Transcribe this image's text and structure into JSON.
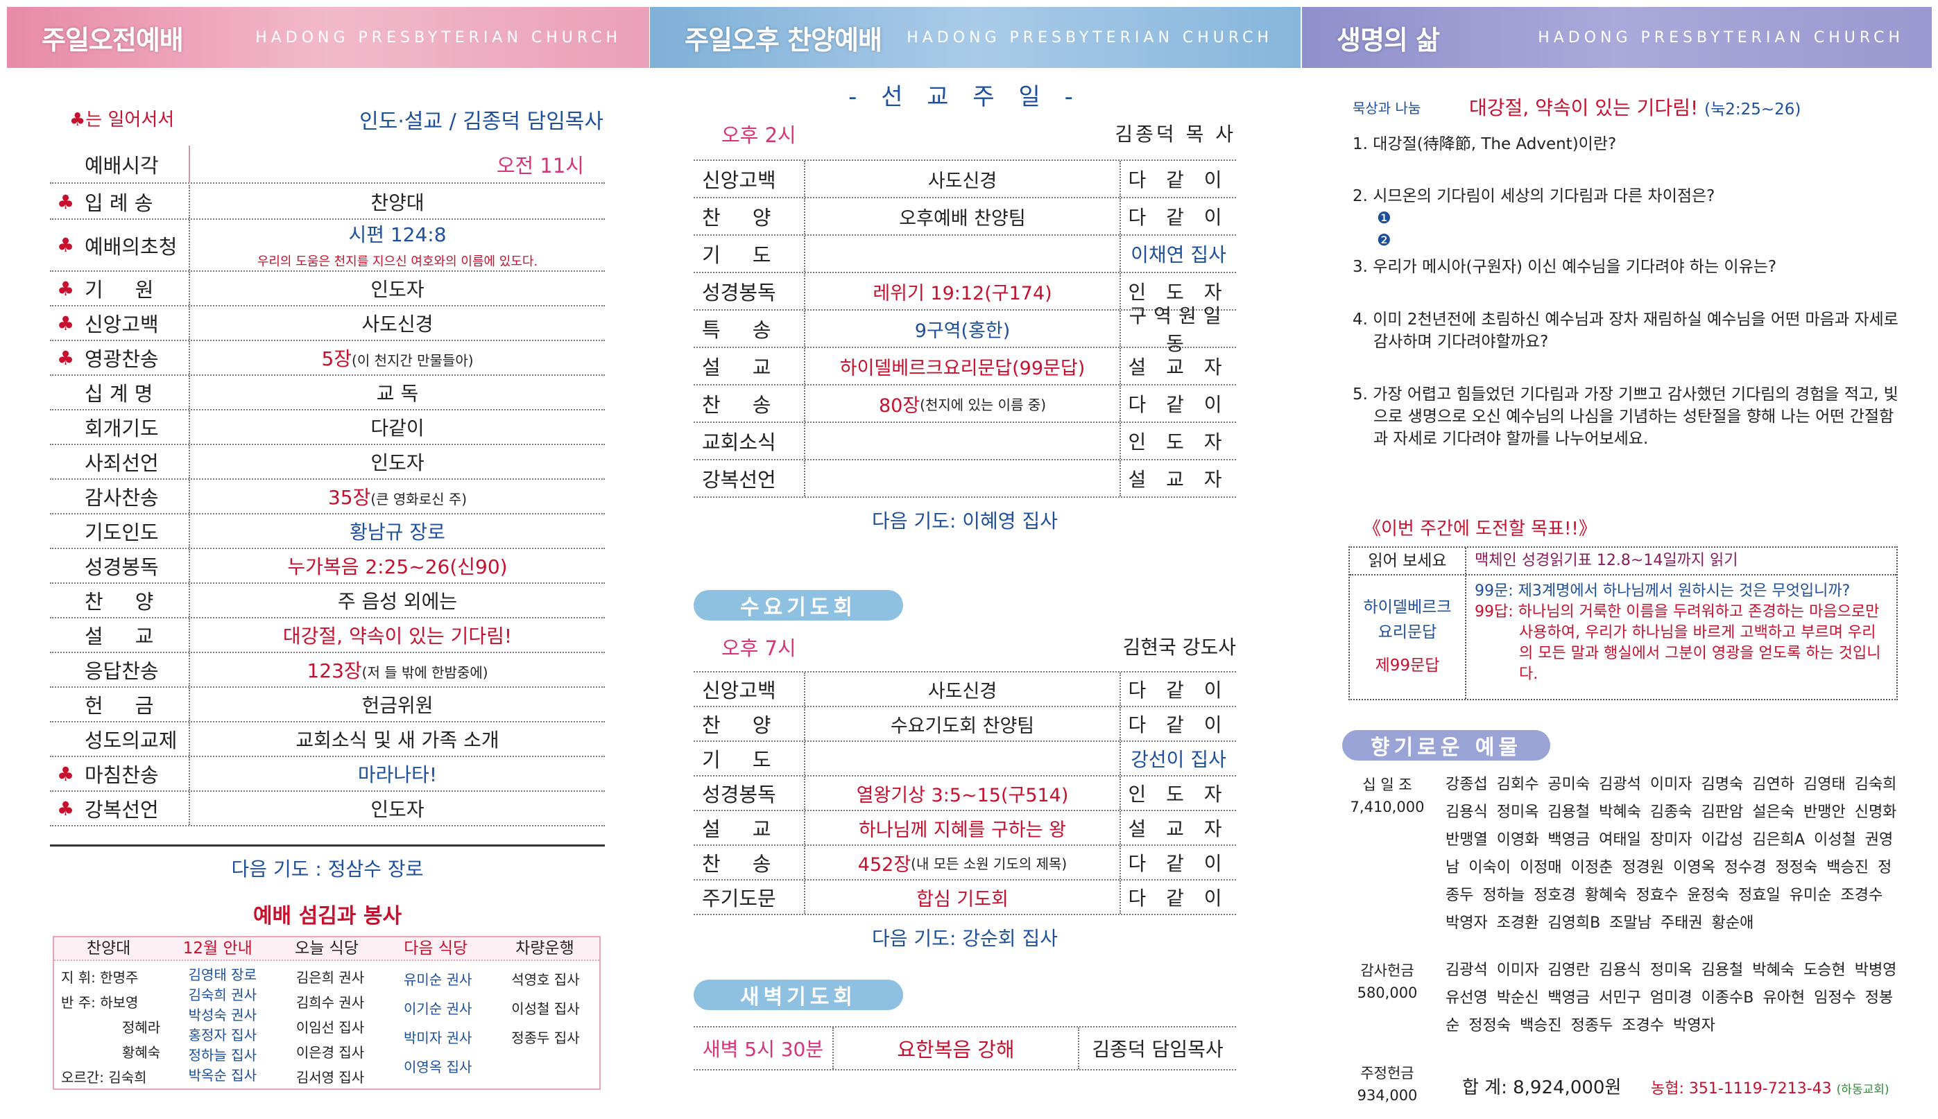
{
  "headers": {
    "subtitle": "HADONG PRESBYTERIAN CHURCH",
    "left": "주일오전예배",
    "middle": "주일오후 찬양예배",
    "right": "생명의 삶"
  },
  "morning": {
    "stand_note": "♣는 일어서서",
    "leader": "인도·설교 / 김종덕 담임목사",
    "time_label": "예배시각",
    "time_value": "오전 11시",
    "rows": [
      {
        "mark": "♣",
        "label": "입 례 송",
        "value": "찬양대"
      },
      {
        "mark": "♣",
        "label": "예배의초청",
        "value": "시편 124:8",
        "sub": "우리의 도움은 천지를 지으신 여호와의 이름에 있도다."
      },
      {
        "mark": "♣",
        "label": "기     원",
        "value": "인도자"
      },
      {
        "mark": "♣",
        "label": "신앙고백",
        "value": "사도신경"
      },
      {
        "mark": "♣",
        "label": "영광찬송",
        "value": "5장",
        "note": "(이 천지간 만물들아)"
      },
      {
        "mark": "",
        "label": "십 계 명",
        "value": "교 독"
      },
      {
        "mark": "",
        "label": "회개기도",
        "value": "다같이"
      },
      {
        "mark": "",
        "label": "사죄선언",
        "value": "인도자"
      },
      {
        "mark": "",
        "label": "감사찬송",
        "value": "35장",
        "note": "(큰 영화로신 주)"
      },
      {
        "mark": "",
        "label": "기도인도",
        "value": "황남규 장로"
      },
      {
        "mark": "",
        "label": "성경봉독",
        "value": "누가복음 2:25~26(신90)"
      },
      {
        "mark": "",
        "label": "찬     양",
        "value": "주 음성 외에는"
      },
      {
        "mark": "",
        "label": "설     교",
        "value": "대강절, 약속이 있는 기다림!"
      },
      {
        "mark": "",
        "label": "응답찬송",
        "value": "123장",
        "note": "(저 들 밖에 한밤중에)"
      },
      {
        "mark": "",
        "label": "헌     금",
        "value": "헌금위원"
      },
      {
        "mark": "",
        "label": "성도의교제",
        "value": "교회소식 및 새 가족 소개"
      },
      {
        "mark": "♣",
        "label": "마침찬송",
        "value": "마라나타!"
      },
      {
        "mark": "♣",
        "label": "강복선언",
        "value": "인도자"
      }
    ],
    "next_prayer": "다음 기도 : 정삼수 장로",
    "service_title": "예배 섬김과 봉사",
    "service": {
      "headers": [
        "찬양대",
        "12월 안내",
        "오늘 식당",
        "다음 식당",
        "차량운행"
      ],
      "choir": [
        "지   휘: 한명주",
        "반   주: 하보영",
        "정혜라",
        "황혜숙",
        "오르간: 김숙희"
      ],
      "guide": [
        "김영태 장로",
        "김숙희 권사",
        "박성숙 권사",
        "홍정자 집사",
        "정하늘 집사",
        "박옥순 집사"
      ],
      "today_kitchen": [
        "김은희 권사",
        "김희수 권사",
        "이임선 집사",
        "이은경 집사",
        "김서영 집사"
      ],
      "next_kitchen": [
        "유미순 권사",
        "이기순 권사",
        "박미자 권사",
        "이영옥 집사"
      ],
      "drivers": [
        "석영호 집사",
        "이성철 집사",
        "정종두 집사"
      ]
    }
  },
  "afternoon": {
    "theme": "- 선 교 주 일 -",
    "time": "오후 2시",
    "preacher": "김종덕 목 사",
    "rows": [
      {
        "label": "신앙고백",
        "value": "사도신경",
        "who": "다 같 이"
      },
      {
        "label": "찬     양",
        "value": "오후예배 찬양팀",
        "who": "다 같 이"
      },
      {
        "label": "기     도",
        "value": "",
        "who": "이채연 집사"
      },
      {
        "label": "성경봉독",
        "value": "레위기 19:12(구174)",
        "who": "인 도 자"
      },
      {
        "label": "특     송",
        "value": "9구역(홍한)",
        "who": "구역원일동"
      },
      {
        "label": "설     교",
        "value": "하이델베르크요리문답(99문답)",
        "who": "설 교 자"
      },
      {
        "label": "찬     송",
        "value": "80장",
        "note": "(천지에 있는 이름 중)",
        "who": "다 같 이"
      },
      {
        "label": "교회소식",
        "value": "",
        "who": "인 도 자"
      },
      {
        "label": "강복선언",
        "value": "",
        "who": "설 교 자"
      }
    ],
    "next_prayer": "다음 기도: 이혜영 집사"
  },
  "wednesday": {
    "title": "수요기도회",
    "time": "오후 7시",
    "preacher": "김현국 강도사",
    "rows": [
      {
        "label": "신앙고백",
        "value": "사도신경",
        "who": "다 같 이"
      },
      {
        "label": "찬     양",
        "value": "수요기도회 찬양팀",
        "who": "다 같 이"
      },
      {
        "label": "기     도",
        "value": "",
        "who": "강선이 집사"
      },
      {
        "label": "성경봉독",
        "value": "열왕기상 3:5~15(구514)",
        "who": "인 도 자"
      },
      {
        "label": "설     교",
        "value": "하나님께 지혜를 구하는 왕",
        "who": "설 교 자"
      },
      {
        "label": "찬     송",
        "value": "452장",
        "note": "(내 모든 소원 기도의 제목)",
        "who": "다 같 이"
      },
      {
        "label": "주기도문",
        "value": "합심 기도회",
        "who": "다 같 이"
      }
    ],
    "next_prayer": "다음 기도: 강순회 집사"
  },
  "dawn": {
    "title": "새벽기도회",
    "time": "새벽 5시 30분",
    "value": "요한복음 강해",
    "who": "김종덕 담임목사"
  },
  "life": {
    "tag": "묵상과 나눔",
    "title": "대강절, 약속이 있는 기다림!",
    "ref": "(눅2:25~26)",
    "questions": [
      "1. 대강절(待降節, The Advent)이란?",
      "2. 시므온의 기다림이 세상의 기다림과 다른 차이점은?",
      "❶",
      "❷",
      "3. 우리가 메시아(구원자) 이신 예수님을 기다려야 하는 이유는?",
      "4. 이미 2천년전에 초림하신 예수님과 장차 재림하실 예수님을 어떤 마음과 자세로 감사하며 기다려야할까요?",
      "5. 가장 어렵고 힘들었던 기다림과 가장 기쁘고 감사했던 기다림의 경험을 적고, 빛으로 생명으로 오신 예수님의 나심을 기념하는 성탄절을 향해 나는 어떤 간절함과 자세로 기다려야 할까를 나누어보세요."
    ],
    "challenge_title": "《이번 주간에 도전할 목표!!》",
    "read_label": "읽어 보세요",
    "read_value": "맥체인 성경읽기표 12.8~14일까지 읽기",
    "catechism_label1": "하이델베르크",
    "catechism_label2": "요리문답",
    "catechism_label3": "제99문답",
    "q99": "99문: 제3계명에서 하나님께서 원하시는 것은 무엇입니까?",
    "a99": "99답: 하나님의 거룩한 이름을 두려워하고 존경하는 마음으로만 사용하여, 우리가 하나님을 바르게 고백하고 부르며 우리의 모든 말과 행실에서 그분이 영광을 얻도록 하는 것입니다."
  },
  "offering": {
    "title": "향기로운 예물",
    "tithe_label": "십 일 조",
    "tithe_amount": "7,410,000",
    "tithe_names": "강종섭 김회수 공미숙 김광석 이미자 김명숙 김연하 김영태 김숙희 김용식 정미옥 김용철 박혜숙 김종숙 김판암 설은숙 반맹안 신명화 반맹열 이영화 백영금 여태일 장미자 이갑성 김은희A 이성철 권영남 이숙이 이정매 이정춘 정경원 이영옥 정수경 정정숙 백승진 정종두 정하늘 정호경 황혜숙 정효수 윤정숙 정효일 유미순 조경수 박영자 조경환 김영희B 조말남 주태권 황순애",
    "thanks_label": "감사헌금",
    "thanks_amount": "580,000",
    "thanks_names": "김광석 이미자 김영란 김용식 정미옥 김용철 박혜숙 도승현 박병영 유선영 박순신 백영금 서민구 엄미경 이종수B 유아현 임정수 정봉순 정정숙 백승진 정종두 조경수 박영자",
    "weekly_label": "주정헌금",
    "weekly_amount": "934,000",
    "total": "합 계: 8,924,000원",
    "account": "농협: 351-1119-7213-43",
    "account_holder": "(하동교회)"
  },
  "colors": {
    "pink_header": "#e88aa8",
    "blue_header": "#7fb0d8",
    "purple_header": "#8f8fcc",
    "red": "#c8102e",
    "blue": "#1d4f9c"
  }
}
